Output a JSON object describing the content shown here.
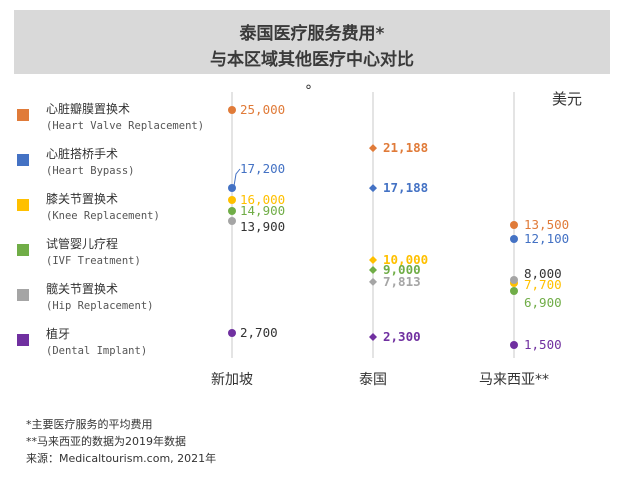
{
  "title": [
    "泰国医疗服务费用*",
    "与本区域其他医疗中心对比"
  ],
  "unit_label": "美元",
  "unit_mark": "°",
  "footnotes": [
    "*主要医疗服务的平均费用",
    "**马来西亚的数据为2019年数据",
    "来源：Medicaltourism.com, 2021年"
  ],
  "chart_data": {
    "type": "scatter",
    "title": "泰国医疗服务费用* 与本区域其他医疗中心对比",
    "ylabel": "美元",
    "categories": [
      "新加坡",
      "泰国",
      "马来西亚**"
    ],
    "series": [
      {
        "name": "心脏瓣膜置换术",
        "name_en": "(Heart Valve Replacement)",
        "color": "#e07b39",
        "values": [
          25000,
          21188,
          13500
        ],
        "labels": [
          "25,000",
          "21,188",
          "13,500"
        ]
      },
      {
        "name": "心脏搭桥手术",
        "name_en": "(Heart Bypass)",
        "color": "#4472c4",
        "values": [
          17200,
          17188,
          12100
        ],
        "labels": [
          "17,200",
          "17,188",
          "12,100"
        ]
      },
      {
        "name": "膝关节置换术",
        "name_en": "(Knee Replacement)",
        "color": "#ffc000",
        "values": [
          16000,
          10000,
          7700
        ],
        "labels": [
          "16,000",
          "10,000",
          "7,700"
        ]
      },
      {
        "name": "试管婴儿疗程",
        "name_en": "(IVF Treatment)",
        "color": "#70ad47",
        "values": [
          14900,
          9000,
          6900
        ],
        "labels": [
          "14,900",
          "9,000",
          "6,900"
        ]
      },
      {
        "name": "髋关节置换术",
        "name_en": "(Hip Replacement)",
        "color": "#a5a5a5",
        "values": [
          13900,
          7813,
          8000
        ],
        "labels": [
          "13,900",
          "7,813",
          "8,000"
        ]
      },
      {
        "name": "植牙",
        "name_en": "(Dental Implant)",
        "color": "#7030a0",
        "values": [
          2700,
          2300,
          1500
        ],
        "labels": [
          "2,700",
          "2,300",
          "1,500"
        ]
      }
    ],
    "label_colors": [
      [
        "#e07b39",
        "#e07b39",
        "#e07b39"
      ],
      [
        "#4472c4",
        "#4472c4",
        "#4472c4"
      ],
      [
        "#ffc000",
        "#ffc000",
        "#ffc000"
      ],
      [
        "#70ad47",
        "#70ad47",
        "#70ad47"
      ],
      [
        "#333333",
        "#a5a5a5",
        "#333333"
      ],
      [
        "#333333",
        "#7030a0",
        "#7030a0"
      ]
    ],
    "ylim": [
      0,
      27000
    ],
    "grid": false,
    "legend": "left"
  }
}
